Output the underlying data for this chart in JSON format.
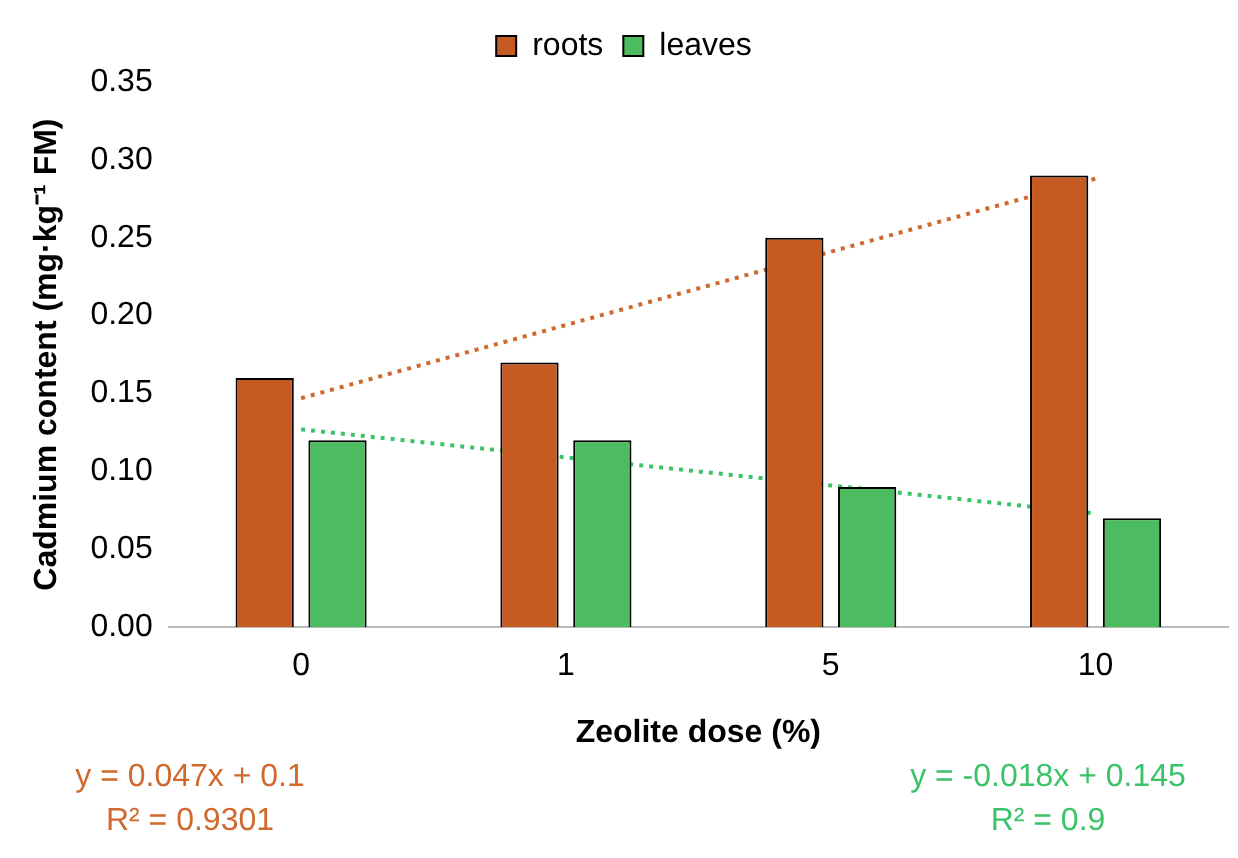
{
  "chart_data": {
    "type": "bar",
    "xlabel": "Zeolite dose (%)",
    "ylabel": "Cadmium content (mg·kg⁻¹ FM)",
    "categories": [
      "0",
      "1",
      "5",
      "10"
    ],
    "series": [
      {
        "name": "roots",
        "color": "#c55a22",
        "values": [
          0.16,
          0.17,
          0.25,
          0.29
        ]
      },
      {
        "name": "leaves",
        "color": "#4dbb5f",
        "values": [
          0.12,
          0.12,
          0.09,
          0.07
        ]
      },
      {
        "type": "line",
        "color": "#d0692e",
        "line_style": "dotted",
        "marker": "none",
        "values": [
          0.147,
          0.194,
          0.241,
          0.288
        ]
      },
      {
        "type": "line",
        "color": "#3cc36a",
        "line_style": "dotted",
        "marker": "none",
        "values": [
          0.127,
          0.109,
          0.091,
          0.073
        ]
      }
    ],
    "ylim": [
      0,
      0.35
    ],
    "yticks": [
      {
        "value": 0,
        "label": "0.00"
      },
      0.05,
      {
        "value": 0.1,
        "label": "0.10"
      },
      0.15,
      {
        "value": 0.2,
        "label": "0.20"
      },
      0.25,
      {
        "value": 0.3,
        "label": "0.30"
      },
      0.35
    ],
    "grid": false,
    "legend": "top",
    "annotations": [
      "y = 0.047x + 0.1",
      "R² = 0.9301",
      "y = -0.018x + 0.145",
      "R² = 0.9"
    ]
  }
}
